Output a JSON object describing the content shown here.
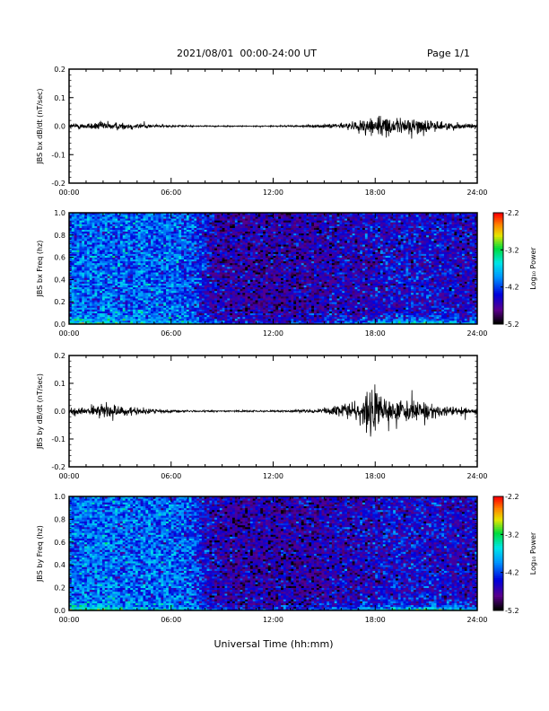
{
  "header": {
    "title": "2021/08/01  00:00-24:00 UT",
    "page": "Page 1/1"
  },
  "xaxis": {
    "title": "Universal Time (hh:mm)",
    "ticks": [
      "00:00",
      "06:00",
      "12:00",
      "18:00",
      "24:00"
    ]
  },
  "colorbar": {
    "label": "Log₁₀ Power",
    "ticks": [
      "-2.2",
      "-3.2",
      "-4.2",
      "-5.2"
    ]
  },
  "chart_data": [
    {
      "type": "line",
      "ylabel": "JBS bx dB/dt (nT/sec)",
      "xlim": [
        0,
        24
      ],
      "ylim": [
        -0.2,
        0.2
      ],
      "yticks": [
        "0.2",
        "0.1",
        "0.0",
        "-0.1",
        "-0.2"
      ],
      "series": [
        {
          "x": [
            0,
            1,
            2,
            3,
            4,
            5,
            6,
            7,
            8,
            9,
            10,
            11,
            12,
            13,
            14,
            15,
            16,
            17,
            18,
            19,
            20,
            21,
            22,
            23,
            24
          ],
          "amplitude": [
            0.01,
            0.012,
            0.018,
            0.014,
            0.012,
            0.006,
            0.004,
            0.003,
            0.002,
            0.002,
            0.002,
            0.002,
            0.002,
            0.003,
            0.004,
            0.006,
            0.012,
            0.018,
            0.05,
            0.025,
            0.035,
            0.025,
            0.015,
            0.012,
            0.01
          ]
        }
      ]
    },
    {
      "type": "heatmap",
      "ylabel": "JBS bx Freq (hz)",
      "xlim": [
        0,
        24
      ],
      "ylim": [
        0,
        1
      ],
      "yticks": [
        "1.0",
        "0.8",
        "0.6",
        "0.4",
        "0.2",
        "0.0"
      ],
      "zlim": [
        -5.2,
        -2.2
      ],
      "background_log_power": [
        -4.1,
        -4.1,
        -4.1,
        -4.1,
        -4.1,
        -4.1,
        -4.1,
        -4.2,
        -4.6,
        -4.7,
        -4.7,
        -4.7,
        -4.7,
        -4.7,
        -4.7,
        -4.6,
        -4.6,
        -4.6,
        -4.5,
        -4.5,
        -4.5,
        -4.5,
        -4.6,
        -4.6
      ],
      "low_freq_enhancement_log_power": [
        -3.2,
        -3.3,
        -3.2,
        -3.4,
        -3.5,
        -3.6,
        -3.7,
        -3.8,
        -4.0,
        -4.1,
        -4.2,
        -4.2,
        -4.2,
        -4.2,
        -4.1,
        -4.0,
        -3.8,
        -3.6,
        -3.4,
        -3.2,
        -3.1,
        -3.3,
        -3.6,
        -3.7
      ]
    },
    {
      "type": "line",
      "ylabel": "JBS by dB/dt (nT/sec)",
      "xlim": [
        0,
        24
      ],
      "ylim": [
        -0.2,
        0.2
      ],
      "yticks": [
        "0.2",
        "0.1",
        "0.0",
        "-0.1",
        "-0.2"
      ],
      "series": [
        {
          "x": [
            0,
            1,
            2,
            3,
            4,
            5,
            6,
            7,
            8,
            9,
            10,
            11,
            12,
            13,
            14,
            15,
            16,
            17,
            18,
            19,
            20,
            21,
            22,
            23,
            24
          ],
          "amplitude": [
            0.015,
            0.018,
            0.03,
            0.02,
            0.015,
            0.008,
            0.006,
            0.004,
            0.003,
            0.003,
            0.003,
            0.003,
            0.003,
            0.004,
            0.006,
            0.01,
            0.02,
            0.04,
            0.1,
            0.04,
            0.045,
            0.03,
            0.02,
            0.018,
            0.015
          ]
        }
      ]
    },
    {
      "type": "heatmap",
      "ylabel": "JBS by Freq (hz)",
      "xlim": [
        0,
        24
      ],
      "ylim": [
        0,
        1
      ],
      "yticks": [
        "1.0",
        "0.8",
        "0.6",
        "0.4",
        "0.2",
        "0.0"
      ],
      "zlim": [
        -5.2,
        -2.2
      ],
      "background_log_power": [
        -4.1,
        -4.1,
        -4.0,
        -4.1,
        -4.1,
        -4.1,
        -4.1,
        -4.2,
        -4.6,
        -4.7,
        -4.7,
        -4.7,
        -4.7,
        -4.7,
        -4.7,
        -4.6,
        -4.6,
        -4.6,
        -4.5,
        -4.5,
        -4.5,
        -4.5,
        -4.6,
        -4.6
      ],
      "low_freq_enhancement_log_power": [
        -3.1,
        -3.2,
        -2.9,
        -3.3,
        -3.5,
        -3.6,
        -3.7,
        -3.8,
        -4.0,
        -4.1,
        -4.2,
        -4.2,
        -4.2,
        -4.2,
        -4.1,
        -4.0,
        -3.8,
        -3.5,
        -3.3,
        -3.1,
        -3.0,
        -3.2,
        -3.5,
        -3.6
      ]
    }
  ]
}
